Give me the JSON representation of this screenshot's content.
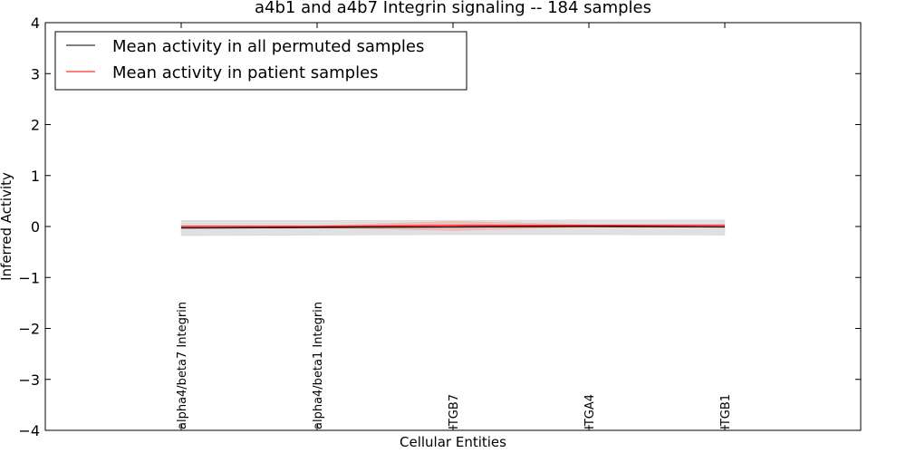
{
  "chart_data": {
    "type": "line",
    "title": "a4b1 and a4b7 Integrin signaling -- 184 samples",
    "xlabel": "Cellular Entities",
    "ylabel": "Inferred Activity",
    "ylim": [
      -4,
      4
    ],
    "yticks": [
      4,
      3,
      2,
      1,
      0,
      -1,
      -2,
      -3,
      -4
    ],
    "ytick_labels": [
      "4",
      "3",
      "2",
      "1",
      "0",
      "−1",
      "−2",
      "−3",
      "−4"
    ],
    "categories": [
      "alpha4/beta7 Integrin",
      "alpha4/beta1 Integrin",
      "ITGB7",
      "ITGA4",
      "ITGB1"
    ],
    "series": [
      {
        "name": "Mean activity in all permuted samples",
        "color": "#000000",
        "values": [
          -0.03,
          -0.02,
          -0.01,
          0.0,
          -0.01
        ],
        "band_low": [
          -0.18,
          -0.17,
          -0.16,
          -0.16,
          -0.17
        ],
        "band_high": [
          0.12,
          0.12,
          0.12,
          0.13,
          0.13
        ],
        "band_color": "#bbbbbb"
      },
      {
        "name": "Mean activity in patient samples",
        "color": "#ff0000",
        "values": [
          0.0,
          0.0,
          0.02,
          0.02,
          0.02
        ],
        "band_low": [
          -0.02,
          -0.02,
          -0.08,
          -0.01,
          -0.01
        ],
        "band_high": [
          0.02,
          0.02,
          0.1,
          0.04,
          0.04
        ],
        "band_color": "#ff9999"
      }
    ],
    "legend_position": "top-left",
    "grid": false
  }
}
